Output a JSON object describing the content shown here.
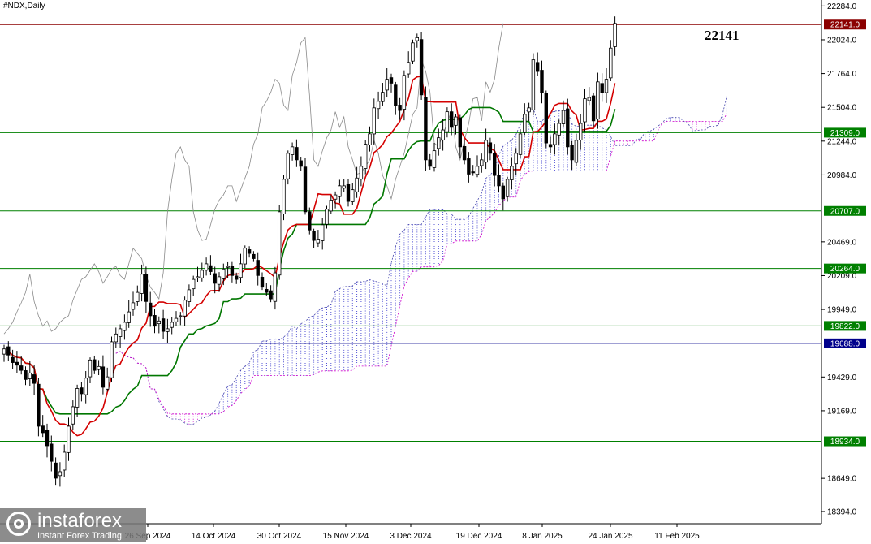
{
  "header": {
    "symbol": "#NDX,Daily"
  },
  "annotation": {
    "big_label": "22141"
  },
  "watermark": {
    "brand": "instaforex",
    "tagline": "Instant Forex Trading"
  },
  "colors": {
    "tenkan": "#d40000",
    "kijun": "#007700",
    "chikou": "#8a8a8a",
    "cloud": "#cc00cc",
    "level": "#008000",
    "level_blue": "#00008b",
    "resistance": "#8b0000"
  },
  "chart_data": {
    "type": "candlestick",
    "title": "#NDX,Daily",
    "ylim": [
      18300,
      22330
    ],
    "y_ticks": [
      "22284.0",
      "22024.0",
      "21764.0",
      "21504.0",
      "21244.0",
      "20984.0",
      "20469.0",
      "20209.0",
      "19949.0",
      "19429.0",
      "19169.0",
      "18649.0",
      "18394.0"
    ],
    "x_ticks": [
      "26 Sep 2024",
      "14 Oct 2024",
      "30 Oct 2024",
      "15 Nov 2024",
      "3 Dec 2024",
      "19 Dec 2024",
      "8 Jan 2025",
      "24 Jan 2025",
      "11 Feb 2025"
    ],
    "levels": [
      {
        "value": 22141.0,
        "label": "22141.0",
        "kind": "resistance"
      },
      {
        "value": 21309.0,
        "label": "21309.0",
        "kind": "green"
      },
      {
        "value": 20707.0,
        "label": "20707.0",
        "kind": "green"
      },
      {
        "value": 20264.0,
        "label": "20264.0",
        "kind": "green"
      },
      {
        "value": 19822.0,
        "label": "19822.0",
        "kind": "green"
      },
      {
        "value": 19688.0,
        "label": "19688.0",
        "kind": "blue"
      },
      {
        "value": 18934.0,
        "label": "18934.0",
        "kind": "green"
      }
    ],
    "candle_closes": [
      19645,
      19598,
      19540,
      19520,
      19480,
      19410,
      19460,
      19380,
      19050,
      19000,
      18900,
      18780,
      18650,
      18700,
      18850,
      19050,
      19200,
      19340,
      19300,
      19420,
      19560,
      19480,
      19510,
      19350,
      19430,
      19700,
      19760,
      19800,
      19850,
      19930,
      20000,
      20080,
      20220,
      20010,
      19900,
      19820,
      19860,
      19780,
      19800,
      19850,
      19880,
      19900,
      20020,
      20100,
      20180,
      20200,
      20250,
      20300,
      20240,
      20150,
      20200,
      20260,
      20280,
      20210,
      20180,
      20300,
      20420,
      20380,
      20340,
      20210,
      20120,
      20080,
      20030,
      20230,
      20700,
      20950,
      21150,
      21200,
      21100,
      21050,
      20700,
      20560,
      20480,
      20490,
      20600,
      20720,
      20790,
      20830,
      20900,
      20900,
      20780,
      20870,
      20960,
      21050,
      21220,
      21300,
      21500,
      21550,
      21620,
      21720,
      21690,
      21520,
      21480,
      21750,
      21850,
      22000,
      22040,
      21600,
      21100,
      21050,
      21170,
      21270,
      21330,
      21470,
      21350,
      21430,
      21200,
      21100,
      20990,
      21000,
      21050,
      21100,
      21250,
      21150,
      20980,
      20900,
      20800,
      20950,
      21050,
      21150,
      21300,
      21450,
      21500,
      21870,
      21780,
      21620,
      21230,
      21200,
      21300,
      21380,
      21480,
      21200,
      21100,
      21250,
      21380,
      21570,
      21580,
      21400,
      21700,
      21620,
      21720,
      21960,
      22150
    ]
  }
}
